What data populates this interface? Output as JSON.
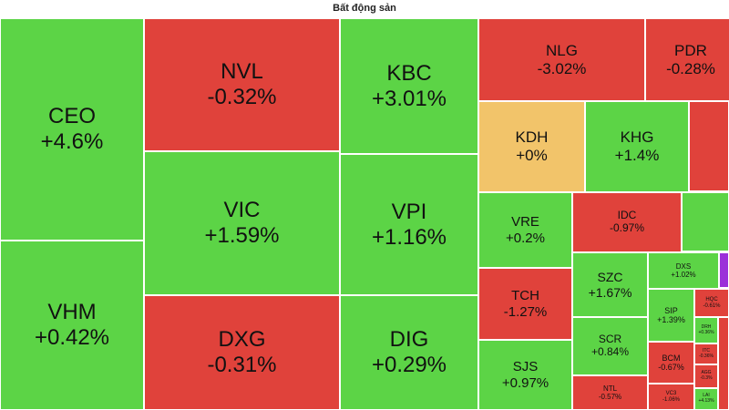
{
  "chart_data": {
    "type": "treemap",
    "title": "Bất động sản",
    "categories": [
      "CEO",
      "VHM",
      "NVL",
      "VIC",
      "DXG",
      "KBC",
      "VPI",
      "DIG",
      "NLG",
      "PDR",
      "KDH",
      "KHG",
      "VRE",
      "IDC",
      "TCH",
      "SJS",
      "SZC",
      "SCR",
      "NTL",
      "DXS",
      "SIP",
      "HQC",
      "BCM",
      "VC3",
      "DRH",
      "ITC",
      "AGG",
      "LAI"
    ],
    "values": [
      4.6,
      0.42,
      -0.32,
      1.59,
      -0.31,
      3.01,
      1.16,
      0.29,
      -3.02,
      -0.28,
      0,
      1.4,
      0.2,
      -0.97,
      -1.27,
      0.97,
      1.67,
      0.84,
      -0.57,
      1.02,
      1.39,
      -0.61,
      -0.67,
      -1.06,
      0.36,
      -0.36,
      -0.3,
      4.13
    ],
    "value_labels": [
      "+4.6%",
      "+0.42%",
      "-0.32%",
      "+1.59%",
      "-0.31%",
      "+3.01%",
      "+1.16%",
      "+0.29%",
      "-3.02%",
      "-0.28%",
      "+0%",
      "+1.4%",
      "+0.2%",
      "-0.97%",
      "-1.27%",
      "+0.97%",
      "+1.67%",
      "+0.84%",
      "-0.57%",
      "+1.02%",
      "+1.39%",
      "-0.61%",
      "-0.67%",
      "-1.06%",
      "+0.36%",
      "-0.36%",
      "-0.3%",
      "+4.13%"
    ],
    "colors": {
      "up": "#5cd446",
      "down": "#e0423b",
      "flat": "#f2c46a"
    }
  }
}
